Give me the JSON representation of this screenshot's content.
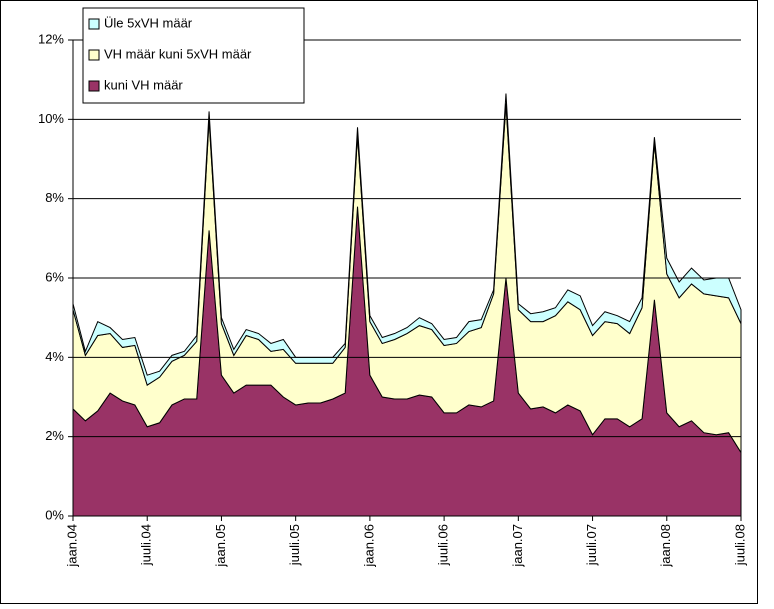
{
  "chart_data": {
    "type": "stacked-area",
    "categories": [
      "jaan.04",
      null,
      null,
      null,
      null,
      null,
      "juuli.04",
      null,
      null,
      null,
      null,
      null,
      "jaan.05",
      null,
      null,
      null,
      null,
      null,
      "juuli.05",
      null,
      null,
      null,
      null,
      null,
      "jaan.06",
      null,
      null,
      null,
      null,
      null,
      "juuli.06",
      null,
      null,
      null,
      null,
      null,
      "jaan.07",
      null,
      null,
      null,
      null,
      null,
      "juuli.07",
      null,
      null,
      null,
      null,
      null,
      "jaan.08",
      null,
      null,
      null,
      null,
      null,
      "juuli.08"
    ],
    "series": [
      {
        "name": "kuni VH määr",
        "color": "#993366",
        "values": [
          2.7,
          2.4,
          2.65,
          3.1,
          2.9,
          2.8,
          2.25,
          2.35,
          2.8,
          2.95,
          2.95,
          7.2,
          3.55,
          3.1,
          3.3,
          3.3,
          3.3,
          3.0,
          2.8,
          2.85,
          2.85,
          2.95,
          3.1,
          7.8,
          3.55,
          3.0,
          2.95,
          2.95,
          3.05,
          3.0,
          2.6,
          2.6,
          2.8,
          2.75,
          2.9,
          6.0,
          3.1,
          2.7,
          2.75,
          2.6,
          2.8,
          2.65,
          2.05,
          2.45,
          2.45,
          2.25,
          2.45,
          5.45,
          2.6,
          2.25,
          2.4,
          2.1,
          2.05,
          2.1,
          1.6
        ]
      },
      {
        "name": "VH määr kuni 5xVH määr",
        "color": "#ffffcc",
        "values": [
          2.5,
          1.65,
          1.9,
          1.5,
          1.35,
          1.5,
          1.05,
          1.15,
          1.1,
          1.1,
          1.45,
          2.8,
          1.3,
          0.95,
          1.25,
          1.15,
          0.85,
          1.2,
          1.05,
          1.0,
          1.0,
          0.9,
          1.15,
          1.8,
          1.35,
          1.35,
          1.5,
          1.65,
          1.75,
          1.7,
          1.7,
          1.75,
          1.85,
          2.0,
          2.7,
          4.4,
          2.1,
          2.2,
          2.15,
          2.45,
          2.6,
          2.55,
          2.5,
          2.45,
          2.4,
          2.35,
          2.8,
          3.95,
          3.5,
          3.25,
          3.45,
          3.5,
          3.5,
          3.4,
          3.25
        ]
      },
      {
        "name": "Üle 5xVH määr",
        "color": "#ccffff",
        "values": [
          0.15,
          0.1,
          0.35,
          0.15,
          0.2,
          0.2,
          0.25,
          0.15,
          0.15,
          0.1,
          0.15,
          0.2,
          0.15,
          0.15,
          0.15,
          0.15,
          0.2,
          0.25,
          0.15,
          0.15,
          0.15,
          0.15,
          0.1,
          0.2,
          0.15,
          0.15,
          0.15,
          0.15,
          0.2,
          0.15,
          0.15,
          0.15,
          0.25,
          0.2,
          0.1,
          0.25,
          0.15,
          0.2,
          0.25,
          0.2,
          0.3,
          0.35,
          0.25,
          0.25,
          0.2,
          0.3,
          0.25,
          0.15,
          0.4,
          0.4,
          0.4,
          0.35,
          0.45,
          0.5,
          0.35
        ]
      }
    ],
    "ylim": [
      0,
      12
    ],
    "yticks": [
      {
        "value": 0,
        "label": "0%"
      },
      {
        "value": 2,
        "label": "2%"
      },
      {
        "value": 4,
        "label": "4%"
      },
      {
        "value": 6,
        "label": "6%"
      },
      {
        "value": 8,
        "label": "8%"
      },
      {
        "value": 10,
        "label": "10%"
      },
      {
        "value": 12,
        "label": "12%"
      }
    ],
    "grid": true,
    "legend": "top-left"
  }
}
